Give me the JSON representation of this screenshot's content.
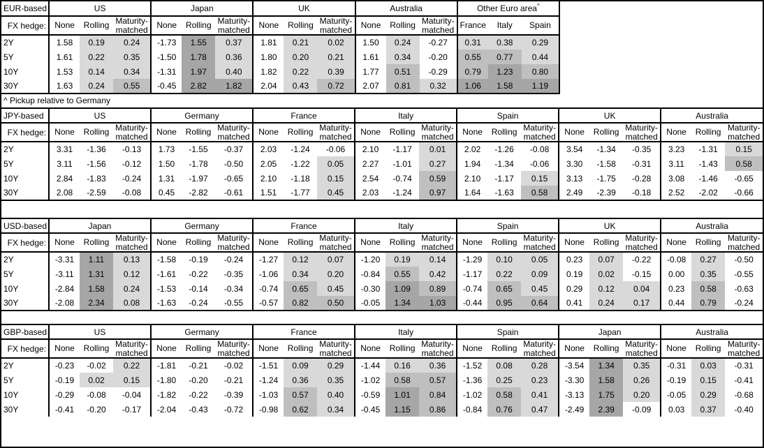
{
  "colors": {
    "shade_light": "#d9d9d9",
    "shade_medium": "#bfbfbf",
    "shade_dark": "#a6a6a6",
    "border": "#000000",
    "background": "#ffffff"
  },
  "chart_data": [
    {
      "id": "eur",
      "type": "table",
      "base_label": "EUR-based",
      "fx_hedge_label": "FX hedge:",
      "tenors": [
        "2Y",
        "5Y",
        "10Y",
        "30Y"
      ],
      "footnote": "^ Pickup relative to Germany",
      "groups": [
        {
          "name": "US",
          "columns": [
            "None",
            "Rolling",
            "Maturity-matched"
          ],
          "shaded": [
            false,
            true,
            true
          ],
          "values": [
            [
              "1.58",
              "0.19",
              "0.24"
            ],
            [
              "1.61",
              "0.22",
              "0.35"
            ],
            [
              "1.53",
              "0.14",
              "0.34"
            ],
            [
              "1.63",
              "0.24",
              "0.55"
            ]
          ]
        },
        {
          "name": "Japan",
          "columns": [
            "None",
            "Rolling",
            "Maturity-matched"
          ],
          "shaded": [
            false,
            true,
            true
          ],
          "values": [
            [
              "-1.73",
              "1.55",
              "0.37"
            ],
            [
              "-1.50",
              "1.78",
              "0.36"
            ],
            [
              "-1.31",
              "1.97",
              "0.40"
            ],
            [
              "-0.45",
              "2.82",
              "1.82"
            ]
          ]
        },
        {
          "name": "UK",
          "columns": [
            "None",
            "Rolling",
            "Maturity-matched"
          ],
          "shaded": [
            false,
            true,
            true
          ],
          "values": [
            [
              "1.81",
              "0.21",
              "0.02"
            ],
            [
              "1.80",
              "0.20",
              "0.21"
            ],
            [
              "1.82",
              "0.22",
              "0.39"
            ],
            [
              "2.04",
              "0.43",
              "0.72"
            ]
          ]
        },
        {
          "name": "Australia",
          "columns": [
            "None",
            "Rolling",
            "Maturity-matched"
          ],
          "shaded": [
            false,
            true,
            true
          ],
          "values": [
            [
              "1.50",
              "0.24",
              "-0.27"
            ],
            [
              "1.61",
              "0.34",
              "-0.20"
            ],
            [
              "1.77",
              "0.51",
              "-0.29"
            ],
            [
              "2.07",
              "0.81",
              "0.32"
            ]
          ]
        },
        {
          "name": "Other Euro area",
          "sup": "^",
          "columns": [
            "France",
            "Italy",
            "Spain"
          ],
          "shaded": [
            true,
            true,
            true
          ],
          "values": [
            [
              "0.31",
              "0.38",
              "0.29"
            ],
            [
              "0.55",
              "0.77",
              "0.44"
            ],
            [
              "0.79",
              "1.23",
              "0.80"
            ],
            [
              "1.06",
              "1.58",
              "1.19"
            ]
          ]
        }
      ]
    },
    {
      "id": "jpy",
      "type": "table",
      "base_label": "JPY-based",
      "fx_hedge_label": "FX hedge:",
      "tenors": [
        "2Y",
        "5Y",
        "10Y",
        "30Y"
      ],
      "groups": [
        {
          "name": "US",
          "columns": [
            "None",
            "Rolling",
            "Maturity-matched"
          ],
          "shaded": [
            false,
            true,
            true
          ],
          "values": [
            [
              "3.31",
              "-1.36",
              "-0.13"
            ],
            [
              "3.11",
              "-1.56",
              "-0.12"
            ],
            [
              "2.84",
              "-1.83",
              "-0.24"
            ],
            [
              "2.08",
              "-2.59",
              "-0.08"
            ]
          ]
        },
        {
          "name": "Germany",
          "columns": [
            "None",
            "Rolling",
            "Maturity-matched"
          ],
          "shaded": [
            false,
            true,
            true
          ],
          "values": [
            [
              "1.73",
              "-1.55",
              "-0.37"
            ],
            [
              "1.50",
              "-1.78",
              "-0.50"
            ],
            [
              "1.31",
              "-1.97",
              "-0.65"
            ],
            [
              "0.45",
              "-2.82",
              "-0.61"
            ]
          ]
        },
        {
          "name": "France",
          "columns": [
            "None",
            "Rolling",
            "Maturity-matched"
          ],
          "shaded": [
            false,
            true,
            true
          ],
          "values": [
            [
              "2.03",
              "-1.24",
              "-0.06"
            ],
            [
              "2.05",
              "-1.22",
              "0.05"
            ],
            [
              "2.10",
              "-1.18",
              "0.15"
            ],
            [
              "1.51",
              "-1.77",
              "0.45"
            ]
          ]
        },
        {
          "name": "Italy",
          "columns": [
            "None",
            "Rolling",
            "Maturity-matched"
          ],
          "shaded": [
            false,
            true,
            true
          ],
          "values": [
            [
              "2.10",
              "-1.17",
              "0.01"
            ],
            [
              "2.27",
              "-1.01",
              "0.27"
            ],
            [
              "2.54",
              "-0.74",
              "0.59"
            ],
            [
              "2.03",
              "-1.24",
              "0.97"
            ]
          ]
        },
        {
          "name": "Spain",
          "columns": [
            "None",
            "Rolling",
            "Maturity-matched"
          ],
          "shaded": [
            false,
            true,
            true
          ],
          "values": [
            [
              "2.02",
              "-1.26",
              "-0.08"
            ],
            [
              "1.94",
              "-1.34",
              "-0.06"
            ],
            [
              "2.10",
              "-1.17",
              "0.15"
            ],
            [
              "1.64",
              "-1.63",
              "0.58"
            ]
          ]
        },
        {
          "name": "UK",
          "columns": [
            "None",
            "Rolling",
            "Maturity-matched"
          ],
          "shaded": [
            false,
            true,
            true
          ],
          "values": [
            [
              "3.54",
              "-1.34",
              "-0.35"
            ],
            [
              "3.30",
              "-1.58",
              "-0.31"
            ],
            [
              "3.13",
              "-1.75",
              "-0.28"
            ],
            [
              "2.49",
              "-2.39",
              "-0.18"
            ]
          ]
        },
        {
          "name": "Australia",
          "columns": [
            "None",
            "Rolling",
            "Maturity-matched"
          ],
          "shaded": [
            false,
            true,
            true
          ],
          "values": [
            [
              "3.23",
              "-1.31",
              "0.15"
            ],
            [
              "3.11",
              "-1.43",
              "0.58"
            ],
            [
              "3.08",
              "-1.46",
              "-0.65"
            ],
            [
              "2.52",
              "-2.02",
              "-0.66"
            ]
          ]
        }
      ]
    },
    {
      "id": "usd",
      "type": "table",
      "base_label": "USD-based",
      "fx_hedge_label": "FX hedge:",
      "tenors": [
        "2Y",
        "5Y",
        "10Y",
        "30Y"
      ],
      "groups": [
        {
          "name": "Japan",
          "columns": [
            "None",
            "Rolling",
            "Maturity-matched"
          ],
          "shaded": [
            false,
            true,
            true
          ],
          "values": [
            [
              "-3.31",
              "1.11",
              "0.13"
            ],
            [
              "-3.11",
              "1.31",
              "0.12"
            ],
            [
              "-2.84",
              "1.58",
              "0.24"
            ],
            [
              "-2.08",
              "2.34",
              "0.08"
            ]
          ]
        },
        {
          "name": "Germany",
          "columns": [
            "None",
            "Rolling",
            "Maturity-matched"
          ],
          "shaded": [
            false,
            true,
            true
          ],
          "values": [
            [
              "-1.58",
              "-0.19",
              "-0.24"
            ],
            [
              "-1.61",
              "-0.22",
              "-0.35"
            ],
            [
              "-1.53",
              "-0.14",
              "-0.34"
            ],
            [
              "-1.63",
              "-0.24",
              "-0.55"
            ]
          ]
        },
        {
          "name": "France",
          "columns": [
            "None",
            "Rolling",
            "Maturity-matched"
          ],
          "shaded": [
            false,
            true,
            true
          ],
          "values": [
            [
              "-1.27",
              "0.12",
              "0.07"
            ],
            [
              "-1.06",
              "0.34",
              "0.20"
            ],
            [
              "-0.74",
              "0.65",
              "0.45"
            ],
            [
              "-0.57",
              "0.82",
              "0.50"
            ]
          ]
        },
        {
          "name": "Italy",
          "columns": [
            "None",
            "Rolling",
            "Maturity-matched"
          ],
          "shaded": [
            false,
            true,
            true
          ],
          "values": [
            [
              "-1.20",
              "0.19",
              "0.14"
            ],
            [
              "-0.84",
              "0.55",
              "0.42"
            ],
            [
              "-0.30",
              "1.09",
              "0.89"
            ],
            [
              "-0.05",
              "1.34",
              "1.03"
            ]
          ]
        },
        {
          "name": "Spain",
          "columns": [
            "None",
            "Rolling",
            "Maturity-matched"
          ],
          "shaded": [
            false,
            true,
            true
          ],
          "values": [
            [
              "-1.29",
              "0.10",
              "0.05"
            ],
            [
              "-1.17",
              "0.22",
              "0.09"
            ],
            [
              "-0.74",
              "0.65",
              "0.45"
            ],
            [
              "-0.44",
              "0.95",
              "0.64"
            ]
          ]
        },
        {
          "name": "UK",
          "columns": [
            "None",
            "Rolling",
            "Maturity-matched"
          ],
          "shaded": [
            false,
            true,
            true
          ],
          "values": [
            [
              "0.23",
              "0.07",
              "-0.22"
            ],
            [
              "0.19",
              "0.02",
              "-0.15"
            ],
            [
              "0.29",
              "0.12",
              "0.04"
            ],
            [
              "0.41",
              "0.24",
              "0.17"
            ]
          ]
        },
        {
          "name": "Australia",
          "columns": [
            "None",
            "Rolling",
            "Maturity-matched"
          ],
          "shaded": [
            false,
            true,
            true
          ],
          "values": [
            [
              "-0.08",
              "0.27",
              "-0.50"
            ],
            [
              "0.00",
              "0.35",
              "-0.55"
            ],
            [
              "0.23",
              "0.58",
              "-0.63"
            ],
            [
              "0.44",
              "0.79",
              "-0.24"
            ]
          ]
        }
      ]
    },
    {
      "id": "gbp",
      "type": "table",
      "base_label": "GBP-based",
      "fx_hedge_label": "FX hedge:",
      "tenors": [
        "2Y",
        "5Y",
        "10Y",
        "30Y"
      ],
      "groups": [
        {
          "name": "US",
          "columns": [
            "None",
            "Rolling",
            "Maturity-matched"
          ],
          "shaded": [
            false,
            true,
            true
          ],
          "values": [
            [
              "-0.23",
              "-0.02",
              "0.22"
            ],
            [
              "-0.19",
              "0.02",
              "0.15"
            ],
            [
              "-0.29",
              "-0.08",
              "-0.04"
            ],
            [
              "-0.41",
              "-0.20",
              "-0.17"
            ]
          ]
        },
        {
          "name": "Germany",
          "columns": [
            "None",
            "Rolling",
            "Maturity-matched"
          ],
          "shaded": [
            false,
            true,
            true
          ],
          "values": [
            [
              "-1.81",
              "-0.21",
              "-0.02"
            ],
            [
              "-1.80",
              "-0.20",
              "-0.21"
            ],
            [
              "-1.82",
              "-0.22",
              "-0.39"
            ],
            [
              "-2.04",
              "-0.43",
              "-0.72"
            ]
          ]
        },
        {
          "name": "France",
          "columns": [
            "None",
            "Rolling",
            "Maturity-matched"
          ],
          "shaded": [
            false,
            true,
            true
          ],
          "values": [
            [
              "-1.51",
              "0.09",
              "0.29"
            ],
            [
              "-1.24",
              "0.36",
              "0.35"
            ],
            [
              "-1.03",
              "0.57",
              "0.40"
            ],
            [
              "-0.98",
              "0.62",
              "0.34"
            ]
          ]
        },
        {
          "name": "Italy",
          "columns": [
            "None",
            "Rolling",
            "Maturity-matched"
          ],
          "shaded": [
            false,
            true,
            true
          ],
          "values": [
            [
              "-1.44",
              "0.16",
              "0.36"
            ],
            [
              "-1.02",
              "0.58",
              "0.57"
            ],
            [
              "-0.59",
              "1.01",
              "0.84"
            ],
            [
              "-0.45",
              "1.15",
              "0.86"
            ]
          ]
        },
        {
          "name": "Spain",
          "columns": [
            "None",
            "Rolling",
            "Maturity-matched"
          ],
          "shaded": [
            false,
            true,
            true
          ],
          "values": [
            [
              "-1.52",
              "0.08",
              "0.28"
            ],
            [
              "-1.36",
              "0.25",
              "0.23"
            ],
            [
              "-1.02",
              "0.58",
              "0.41"
            ],
            [
              "-0.84",
              "0.76",
              "0.47"
            ]
          ]
        },
        {
          "name": "Japan",
          "columns": [
            "None",
            "Rolling",
            "Maturity-matched"
          ],
          "shaded": [
            false,
            true,
            true
          ],
          "values": [
            [
              "-3.54",
              "1.34",
              "0.35"
            ],
            [
              "-3.30",
              "1.58",
              "0.26"
            ],
            [
              "-3.13",
              "1.75",
              "0.20"
            ],
            [
              "-2.49",
              "2.39",
              "-0.09"
            ]
          ]
        },
        {
          "name": "Australia",
          "columns": [
            "None",
            "Rolling",
            "Maturity-matched"
          ],
          "shaded": [
            false,
            true,
            true
          ],
          "values": [
            [
              "-0.31",
              "0.03",
              "-0.31"
            ],
            [
              "-0.19",
              "0.15",
              "-0.41"
            ],
            [
              "-0.05",
              "0.29",
              "-0.68"
            ],
            [
              "0.03",
              "0.37",
              "-0.40"
            ]
          ]
        }
      ]
    }
  ]
}
